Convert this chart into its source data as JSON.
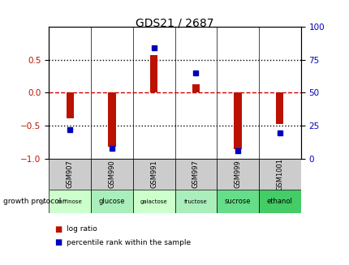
{
  "title": "GDS21 / 2687",
  "samples": [
    "GSM907",
    "GSM990",
    "GSM991",
    "GSM997",
    "GSM999",
    "GSM1001"
  ],
  "protocols": [
    "raffinose",
    "glucose",
    "galactose",
    "fructose",
    "sucrose",
    "ethanol"
  ],
  "log_ratios": [
    -0.38,
    -0.82,
    0.57,
    0.13,
    -0.85,
    -0.47
  ],
  "percentile_ranks": [
    22,
    8,
    84,
    65,
    6,
    20
  ],
  "bar_color": "#bb1100",
  "dot_color": "#0000bb",
  "protocol_colors": [
    "#ccffcc",
    "#aaeebb",
    "#ccffcc",
    "#aaeebb",
    "#66dd88",
    "#44cc66"
  ],
  "ylim": [
    -1.0,
    1.0
  ],
  "y2lim": [
    0,
    100
  ],
  "yticks": [
    -1,
    -0.5,
    0,
    0.5
  ],
  "y2ticks": [
    0,
    25,
    50,
    75,
    100
  ],
  "dotted_lines_black": [
    -0.5,
    0.5
  ],
  "zero_line_color": "#cc0000",
  "dotted_color": "black",
  "legend_log_ratio": "log ratio",
  "legend_percentile": "percentile rank within the sample",
  "growth_protocol_label": "growth protocol",
  "header_bg": "#cccccc",
  "bar_width": 0.18,
  "fig_width": 4.31,
  "fig_height": 3.27,
  "dpi": 100
}
